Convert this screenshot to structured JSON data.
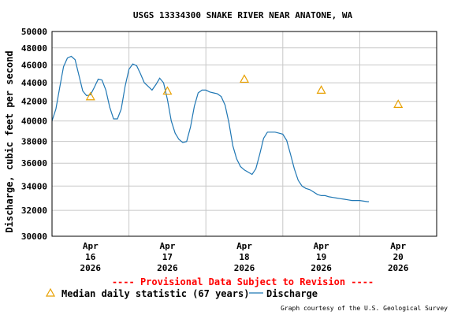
{
  "chart_data": {
    "type": "line",
    "title": "USGS 13334300 SNAKE RIVER NEAR ANATONE, WA",
    "ylabel": "Discharge, cubic feet per second",
    "xlabel": "",
    "ylim": [
      30000,
      50000
    ],
    "xlim": [
      15.5,
      20.5
    ],
    "y_scale": "log",
    "grid": true,
    "y_ticks": [
      30000,
      32000,
      34000,
      36000,
      38000,
      40000,
      42000,
      44000,
      46000,
      48000,
      50000
    ],
    "y_tick_labels": [
      "30000",
      "32000",
      "34000",
      "36000",
      "38000",
      "40000",
      "42000",
      "44000",
      "46000",
      "48000",
      "50000"
    ],
    "x_ticks": [
      {
        "pos": 16,
        "month": "Apr",
        "day": "16",
        "year": "2026"
      },
      {
        "pos": 17,
        "month": "Apr",
        "day": "17",
        "year": "2026"
      },
      {
        "pos": 18,
        "month": "Apr",
        "day": "18",
        "year": "2026"
      },
      {
        "pos": 19,
        "month": "Apr",
        "day": "19",
        "year": "2026"
      },
      {
        "pos": 20,
        "month": "Apr",
        "day": "20",
        "year": "2026"
      }
    ],
    "x_grid": [
      16.5,
      17.5,
      18.5,
      19.5
    ],
    "series": [
      {
        "name": "Discharge",
        "color": "#1f77b4",
        "x": [
          15.5,
          15.55,
          15.6,
          15.65,
          15.7,
          15.75,
          15.8,
          15.85,
          15.9,
          15.95,
          16.0,
          16.05,
          16.1,
          16.15,
          16.2,
          16.25,
          16.3,
          16.35,
          16.4,
          16.45,
          16.5,
          16.55,
          16.6,
          16.65,
          16.7,
          16.75,
          16.8,
          16.85,
          16.9,
          16.95,
          17.0,
          17.05,
          17.1,
          17.15,
          17.2,
          17.25,
          17.3,
          17.35,
          17.4,
          17.45,
          17.5,
          17.55,
          17.6,
          17.65,
          17.7,
          17.75,
          17.8,
          17.85,
          17.9,
          17.95,
          18.0,
          18.05,
          18.1,
          18.15,
          18.2,
          18.25,
          18.3,
          18.35,
          18.4,
          18.45,
          18.5,
          18.55,
          18.6,
          18.65,
          18.7,
          18.75,
          18.8,
          18.85,
          18.9,
          18.95,
          19.0,
          19.05,
          19.1,
          19.15,
          19.2,
          19.25,
          19.3,
          19.35,
          19.4,
          19.45,
          19.5,
          19.55,
          19.6,
          19.62
        ],
        "y": [
          40000,
          41200,
          43500,
          45800,
          46800,
          47000,
          46600,
          44800,
          43100,
          42600,
          42700,
          43500,
          44400,
          44300,
          43200,
          41400,
          40200,
          40200,
          41200,
          43600,
          45500,
          46100,
          45900,
          45000,
          44000,
          43600,
          43200,
          43800,
          44500,
          44000,
          42200,
          40000,
          38800,
          38200,
          37900,
          38000,
          39400,
          41500,
          42900,
          43200,
          43200,
          43000,
          42900,
          42800,
          42500,
          41600,
          39800,
          37600,
          36400,
          35700,
          35400,
          35200,
          35000,
          35500,
          36800,
          38300,
          38900,
          38900,
          38900,
          38800,
          38700,
          38100,
          36800,
          35500,
          34500,
          34000,
          33800,
          33700,
          33500,
          33300,
          33200,
          33200,
          33100,
          33050,
          33000,
          32950,
          32900,
          32850,
          32800,
          32800,
          32800,
          32750,
          32700,
          32700
        ]
      },
      {
        "name": "Median daily statistic (67 years)",
        "color": "#e8a000",
        "marker": "triangle",
        "x": [
          16.0,
          17.0,
          18.0,
          19.0,
          20.0
        ],
        "y": [
          42500,
          43100,
          44400,
          43200,
          41700
        ]
      }
    ],
    "annotation": "---- Provisional Data Subject to Revision ----",
    "legend": {
      "placement": "bottom",
      "entries": [
        {
          "label": "Median daily statistic (67 years)",
          "symbol": "triangle",
          "color": "#e8a000"
        },
        {
          "label": "Discharge",
          "symbol": "line",
          "color": "#1f77b4"
        }
      ]
    },
    "credit": "Graph courtesy of the U.S. Geological Survey"
  }
}
